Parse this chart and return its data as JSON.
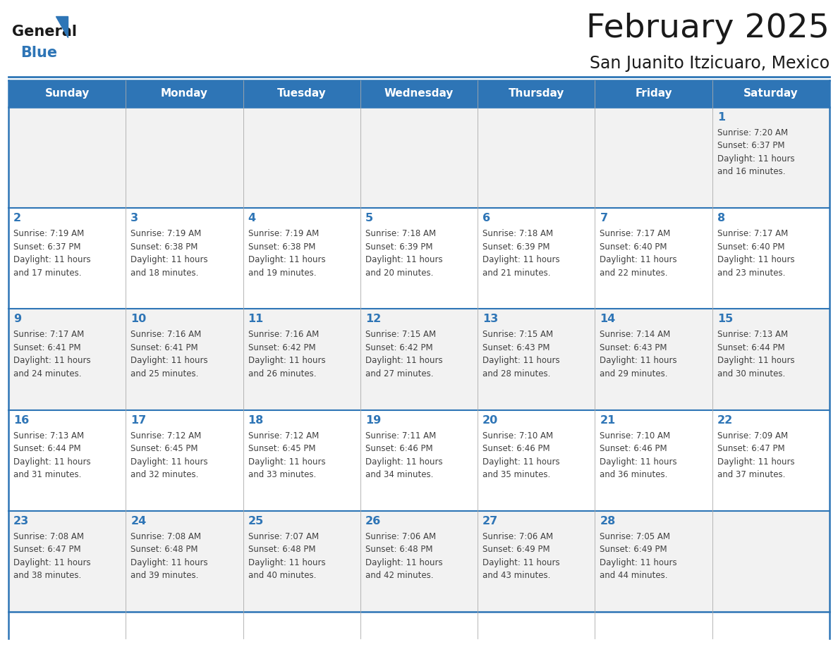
{
  "title": "February 2025",
  "subtitle": "San Juanito Itzicuaro, Mexico",
  "header_bg": "#2E75B6",
  "header_text_color": "#FFFFFF",
  "cell_bg_odd": "#F2F2F2",
  "cell_bg_even": "#FFFFFF",
  "day_number_color": "#2E75B6",
  "cell_text_color": "#404040",
  "grid_line_color": "#2E75B6",
  "thin_line_color": "#AAAAAA",
  "days_of_week": [
    "Sunday",
    "Monday",
    "Tuesday",
    "Wednesday",
    "Thursday",
    "Friday",
    "Saturday"
  ],
  "weeks": [
    [
      {
        "day": null,
        "info": null
      },
      {
        "day": null,
        "info": null
      },
      {
        "day": null,
        "info": null
      },
      {
        "day": null,
        "info": null
      },
      {
        "day": null,
        "info": null
      },
      {
        "day": null,
        "info": null
      },
      {
        "day": 1,
        "info": "Sunrise: 7:20 AM\nSunset: 6:37 PM\nDaylight: 11 hours\nand 16 minutes."
      }
    ],
    [
      {
        "day": 2,
        "info": "Sunrise: 7:19 AM\nSunset: 6:37 PM\nDaylight: 11 hours\nand 17 minutes."
      },
      {
        "day": 3,
        "info": "Sunrise: 7:19 AM\nSunset: 6:38 PM\nDaylight: 11 hours\nand 18 minutes."
      },
      {
        "day": 4,
        "info": "Sunrise: 7:19 AM\nSunset: 6:38 PM\nDaylight: 11 hours\nand 19 minutes."
      },
      {
        "day": 5,
        "info": "Sunrise: 7:18 AM\nSunset: 6:39 PM\nDaylight: 11 hours\nand 20 minutes."
      },
      {
        "day": 6,
        "info": "Sunrise: 7:18 AM\nSunset: 6:39 PM\nDaylight: 11 hours\nand 21 minutes."
      },
      {
        "day": 7,
        "info": "Sunrise: 7:17 AM\nSunset: 6:40 PM\nDaylight: 11 hours\nand 22 minutes."
      },
      {
        "day": 8,
        "info": "Sunrise: 7:17 AM\nSunset: 6:40 PM\nDaylight: 11 hours\nand 23 minutes."
      }
    ],
    [
      {
        "day": 9,
        "info": "Sunrise: 7:17 AM\nSunset: 6:41 PM\nDaylight: 11 hours\nand 24 minutes."
      },
      {
        "day": 10,
        "info": "Sunrise: 7:16 AM\nSunset: 6:41 PM\nDaylight: 11 hours\nand 25 minutes."
      },
      {
        "day": 11,
        "info": "Sunrise: 7:16 AM\nSunset: 6:42 PM\nDaylight: 11 hours\nand 26 minutes."
      },
      {
        "day": 12,
        "info": "Sunrise: 7:15 AM\nSunset: 6:42 PM\nDaylight: 11 hours\nand 27 minutes."
      },
      {
        "day": 13,
        "info": "Sunrise: 7:15 AM\nSunset: 6:43 PM\nDaylight: 11 hours\nand 28 minutes."
      },
      {
        "day": 14,
        "info": "Sunrise: 7:14 AM\nSunset: 6:43 PM\nDaylight: 11 hours\nand 29 minutes."
      },
      {
        "day": 15,
        "info": "Sunrise: 7:13 AM\nSunset: 6:44 PM\nDaylight: 11 hours\nand 30 minutes."
      }
    ],
    [
      {
        "day": 16,
        "info": "Sunrise: 7:13 AM\nSunset: 6:44 PM\nDaylight: 11 hours\nand 31 minutes."
      },
      {
        "day": 17,
        "info": "Sunrise: 7:12 AM\nSunset: 6:45 PM\nDaylight: 11 hours\nand 32 minutes."
      },
      {
        "day": 18,
        "info": "Sunrise: 7:12 AM\nSunset: 6:45 PM\nDaylight: 11 hours\nand 33 minutes."
      },
      {
        "day": 19,
        "info": "Sunrise: 7:11 AM\nSunset: 6:46 PM\nDaylight: 11 hours\nand 34 minutes."
      },
      {
        "day": 20,
        "info": "Sunrise: 7:10 AM\nSunset: 6:46 PM\nDaylight: 11 hours\nand 35 minutes."
      },
      {
        "day": 21,
        "info": "Sunrise: 7:10 AM\nSunset: 6:46 PM\nDaylight: 11 hours\nand 36 minutes."
      },
      {
        "day": 22,
        "info": "Sunrise: 7:09 AM\nSunset: 6:47 PM\nDaylight: 11 hours\nand 37 minutes."
      }
    ],
    [
      {
        "day": 23,
        "info": "Sunrise: 7:08 AM\nSunset: 6:47 PM\nDaylight: 11 hours\nand 38 minutes."
      },
      {
        "day": 24,
        "info": "Sunrise: 7:08 AM\nSunset: 6:48 PM\nDaylight: 11 hours\nand 39 minutes."
      },
      {
        "day": 25,
        "info": "Sunrise: 7:07 AM\nSunset: 6:48 PM\nDaylight: 11 hours\nand 40 minutes."
      },
      {
        "day": 26,
        "info": "Sunrise: 7:06 AM\nSunset: 6:48 PM\nDaylight: 11 hours\nand 42 minutes."
      },
      {
        "day": 27,
        "info": "Sunrise: 7:06 AM\nSunset: 6:49 PM\nDaylight: 11 hours\nand 43 minutes."
      },
      {
        "day": 28,
        "info": "Sunrise: 7:05 AM\nSunset: 6:49 PM\nDaylight: 11 hours\nand 44 minutes."
      },
      {
        "day": null,
        "info": null
      }
    ]
  ],
  "fig_width": 11.88,
  "fig_height": 9.18,
  "dpi": 100
}
